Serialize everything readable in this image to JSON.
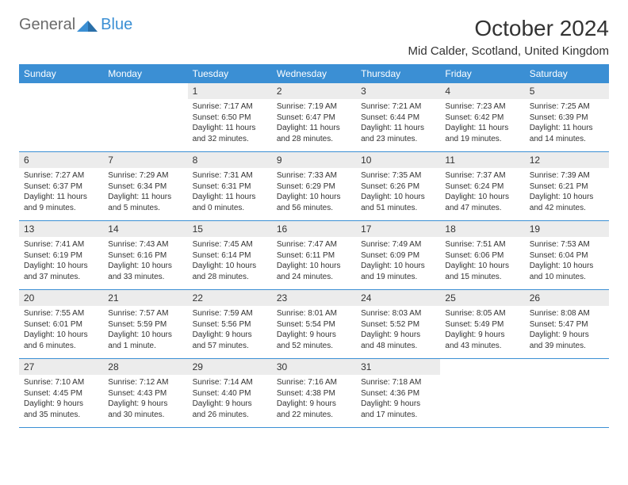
{
  "logo": {
    "text_general": "General",
    "text_blue": "Blue",
    "icon_color": "#3b8fd4"
  },
  "header": {
    "month_title": "October 2024",
    "location": "Mid Calder, Scotland, United Kingdom"
  },
  "colors": {
    "header_bg": "#3b8fd4",
    "day_num_bg": "#ececec",
    "text": "#333333",
    "logo_gray": "#6b6b6b"
  },
  "weekdays": [
    "Sunday",
    "Monday",
    "Tuesday",
    "Wednesday",
    "Thursday",
    "Friday",
    "Saturday"
  ],
  "weeks": [
    [
      null,
      null,
      {
        "num": "1",
        "sunrise": "Sunrise: 7:17 AM",
        "sunset": "Sunset: 6:50 PM",
        "daylight": "Daylight: 11 hours and 32 minutes."
      },
      {
        "num": "2",
        "sunrise": "Sunrise: 7:19 AM",
        "sunset": "Sunset: 6:47 PM",
        "daylight": "Daylight: 11 hours and 28 minutes."
      },
      {
        "num": "3",
        "sunrise": "Sunrise: 7:21 AM",
        "sunset": "Sunset: 6:44 PM",
        "daylight": "Daylight: 11 hours and 23 minutes."
      },
      {
        "num": "4",
        "sunrise": "Sunrise: 7:23 AM",
        "sunset": "Sunset: 6:42 PM",
        "daylight": "Daylight: 11 hours and 19 minutes."
      },
      {
        "num": "5",
        "sunrise": "Sunrise: 7:25 AM",
        "sunset": "Sunset: 6:39 PM",
        "daylight": "Daylight: 11 hours and 14 minutes."
      }
    ],
    [
      {
        "num": "6",
        "sunrise": "Sunrise: 7:27 AM",
        "sunset": "Sunset: 6:37 PM",
        "daylight": "Daylight: 11 hours and 9 minutes."
      },
      {
        "num": "7",
        "sunrise": "Sunrise: 7:29 AM",
        "sunset": "Sunset: 6:34 PM",
        "daylight": "Daylight: 11 hours and 5 minutes."
      },
      {
        "num": "8",
        "sunrise": "Sunrise: 7:31 AM",
        "sunset": "Sunset: 6:31 PM",
        "daylight": "Daylight: 11 hours and 0 minutes."
      },
      {
        "num": "9",
        "sunrise": "Sunrise: 7:33 AM",
        "sunset": "Sunset: 6:29 PM",
        "daylight": "Daylight: 10 hours and 56 minutes."
      },
      {
        "num": "10",
        "sunrise": "Sunrise: 7:35 AM",
        "sunset": "Sunset: 6:26 PM",
        "daylight": "Daylight: 10 hours and 51 minutes."
      },
      {
        "num": "11",
        "sunrise": "Sunrise: 7:37 AM",
        "sunset": "Sunset: 6:24 PM",
        "daylight": "Daylight: 10 hours and 47 minutes."
      },
      {
        "num": "12",
        "sunrise": "Sunrise: 7:39 AM",
        "sunset": "Sunset: 6:21 PM",
        "daylight": "Daylight: 10 hours and 42 minutes."
      }
    ],
    [
      {
        "num": "13",
        "sunrise": "Sunrise: 7:41 AM",
        "sunset": "Sunset: 6:19 PM",
        "daylight": "Daylight: 10 hours and 37 minutes."
      },
      {
        "num": "14",
        "sunrise": "Sunrise: 7:43 AM",
        "sunset": "Sunset: 6:16 PM",
        "daylight": "Daylight: 10 hours and 33 minutes."
      },
      {
        "num": "15",
        "sunrise": "Sunrise: 7:45 AM",
        "sunset": "Sunset: 6:14 PM",
        "daylight": "Daylight: 10 hours and 28 minutes."
      },
      {
        "num": "16",
        "sunrise": "Sunrise: 7:47 AM",
        "sunset": "Sunset: 6:11 PM",
        "daylight": "Daylight: 10 hours and 24 minutes."
      },
      {
        "num": "17",
        "sunrise": "Sunrise: 7:49 AM",
        "sunset": "Sunset: 6:09 PM",
        "daylight": "Daylight: 10 hours and 19 minutes."
      },
      {
        "num": "18",
        "sunrise": "Sunrise: 7:51 AM",
        "sunset": "Sunset: 6:06 PM",
        "daylight": "Daylight: 10 hours and 15 minutes."
      },
      {
        "num": "19",
        "sunrise": "Sunrise: 7:53 AM",
        "sunset": "Sunset: 6:04 PM",
        "daylight": "Daylight: 10 hours and 10 minutes."
      }
    ],
    [
      {
        "num": "20",
        "sunrise": "Sunrise: 7:55 AM",
        "sunset": "Sunset: 6:01 PM",
        "daylight": "Daylight: 10 hours and 6 minutes."
      },
      {
        "num": "21",
        "sunrise": "Sunrise: 7:57 AM",
        "sunset": "Sunset: 5:59 PM",
        "daylight": "Daylight: 10 hours and 1 minute."
      },
      {
        "num": "22",
        "sunrise": "Sunrise: 7:59 AM",
        "sunset": "Sunset: 5:56 PM",
        "daylight": "Daylight: 9 hours and 57 minutes."
      },
      {
        "num": "23",
        "sunrise": "Sunrise: 8:01 AM",
        "sunset": "Sunset: 5:54 PM",
        "daylight": "Daylight: 9 hours and 52 minutes."
      },
      {
        "num": "24",
        "sunrise": "Sunrise: 8:03 AM",
        "sunset": "Sunset: 5:52 PM",
        "daylight": "Daylight: 9 hours and 48 minutes."
      },
      {
        "num": "25",
        "sunrise": "Sunrise: 8:05 AM",
        "sunset": "Sunset: 5:49 PM",
        "daylight": "Daylight: 9 hours and 43 minutes."
      },
      {
        "num": "26",
        "sunrise": "Sunrise: 8:08 AM",
        "sunset": "Sunset: 5:47 PM",
        "daylight": "Daylight: 9 hours and 39 minutes."
      }
    ],
    [
      {
        "num": "27",
        "sunrise": "Sunrise: 7:10 AM",
        "sunset": "Sunset: 4:45 PM",
        "daylight": "Daylight: 9 hours and 35 minutes."
      },
      {
        "num": "28",
        "sunrise": "Sunrise: 7:12 AM",
        "sunset": "Sunset: 4:43 PM",
        "daylight": "Daylight: 9 hours and 30 minutes."
      },
      {
        "num": "29",
        "sunrise": "Sunrise: 7:14 AM",
        "sunset": "Sunset: 4:40 PM",
        "daylight": "Daylight: 9 hours and 26 minutes."
      },
      {
        "num": "30",
        "sunrise": "Sunrise: 7:16 AM",
        "sunset": "Sunset: 4:38 PM",
        "daylight": "Daylight: 9 hours and 22 minutes."
      },
      {
        "num": "31",
        "sunrise": "Sunrise: 7:18 AM",
        "sunset": "Sunset: 4:36 PM",
        "daylight": "Daylight: 9 hours and 17 minutes."
      },
      null,
      null
    ]
  ]
}
